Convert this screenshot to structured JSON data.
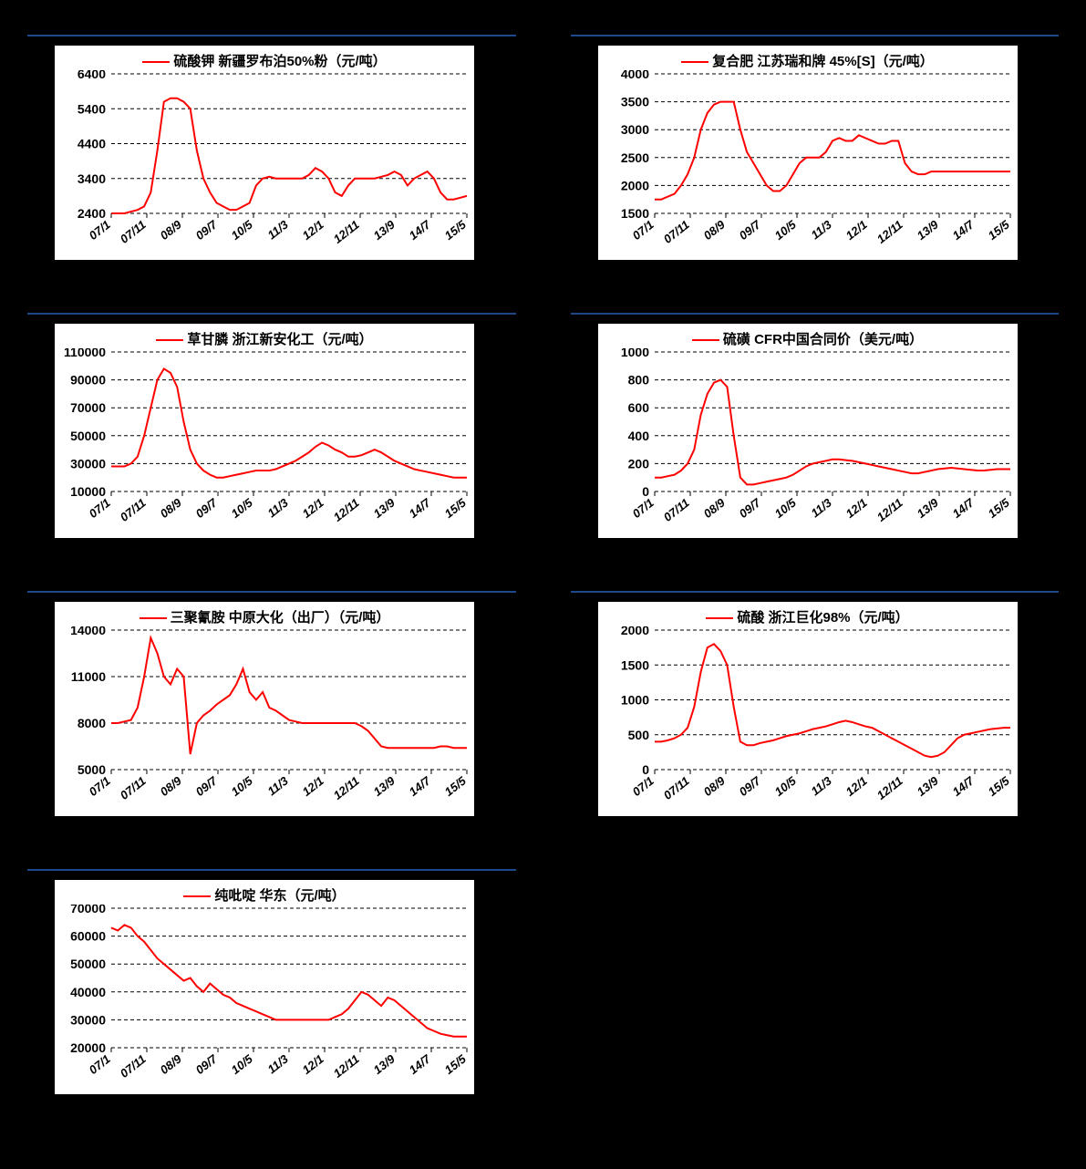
{
  "x_labels": [
    "07/1",
    "07/11",
    "08/9",
    "09/7",
    "10/5",
    "11/3",
    "12/1",
    "12/11",
    "13/9",
    "14/7",
    "15/5"
  ],
  "charts": [
    {
      "id": "potassium-sulfate",
      "legend": "硫酸钾 新疆罗布泊50%粉（元/吨）",
      "ylim": [
        2400,
        6400
      ],
      "ytick_step": 1000,
      "yticks": [
        2400,
        3400,
        4400,
        5400,
        6400
      ],
      "line_color": "#ff0000",
      "line_width": 2,
      "grid_color": "#000000",
      "background_color": "#ffffff",
      "data": [
        2400,
        2400,
        2400,
        2450,
        2500,
        2600,
        3000,
        4200,
        5600,
        5700,
        5700,
        5600,
        5400,
        4200,
        3400,
        3000,
        2700,
        2600,
        2500,
        2500,
        2600,
        2700,
        3200,
        3400,
        3450,
        3400,
        3400,
        3400,
        3400,
        3400,
        3500,
        3700,
        3600,
        3400,
        3000,
        2900,
        3200,
        3400,
        3400,
        3400,
        3400,
        3450,
        3500,
        3600,
        3500,
        3200,
        3400,
        3500,
        3600,
        3400,
        3000,
        2800,
        2800,
        2850,
        2900
      ]
    },
    {
      "id": "compound-fertilizer",
      "legend": "复合肥 江苏瑞和牌 45%[S]（元/吨）",
      "ylim": [
        1500,
        4000
      ],
      "ytick_step": 500,
      "yticks": [
        1500,
        2000,
        2500,
        3000,
        3500,
        4000
      ],
      "line_color": "#ff0000",
      "line_width": 2,
      "grid_color": "#000000",
      "background_color": "#ffffff",
      "data": [
        1750,
        1750,
        1800,
        1850,
        2000,
        2200,
        2500,
        3000,
        3300,
        3450,
        3500,
        3500,
        3500,
        3000,
        2600,
        2400,
        2200,
        2000,
        1900,
        1900,
        2000,
        2200,
        2400,
        2500,
        2500,
        2500,
        2600,
        2800,
        2850,
        2800,
        2800,
        2900,
        2850,
        2800,
        2750,
        2750,
        2800,
        2800,
        2400,
        2250,
        2200,
        2200,
        2250,
        2250,
        2250,
        2250,
        2250,
        2250,
        2250,
        2250,
        2250,
        2250,
        2250,
        2250,
        2250
      ]
    },
    {
      "id": "glyphosate",
      "legend": "草甘膦 浙江新安化工（元/吨）",
      "ylim": [
        10000,
        110000
      ],
      "ytick_step": 20000,
      "yticks": [
        10000,
        30000,
        50000,
        70000,
        90000,
        110000
      ],
      "line_color": "#ff0000",
      "line_width": 2,
      "grid_color": "#000000",
      "background_color": "#ffffff",
      "data": [
        28000,
        28000,
        28000,
        30000,
        35000,
        50000,
        70000,
        90000,
        98000,
        95000,
        85000,
        60000,
        40000,
        30000,
        25000,
        22000,
        20000,
        20000,
        21000,
        22000,
        23000,
        24000,
        25000,
        25000,
        25000,
        26000,
        28000,
        30000,
        32000,
        35000,
        38000,
        42000,
        45000,
        43000,
        40000,
        38000,
        35000,
        35000,
        36000,
        38000,
        40000,
        38000,
        35000,
        32000,
        30000,
        28000,
        26000,
        25000,
        24000,
        23000,
        22000,
        21000,
        20000,
        20000,
        20000
      ]
    },
    {
      "id": "sulfur",
      "legend": "硫磺 CFR中国合同价（美元/吨）",
      "ylim": [
        0,
        1000
      ],
      "ytick_step": 200,
      "yticks": [
        0,
        200,
        400,
        600,
        800,
        1000
      ],
      "line_color": "#ff0000",
      "line_width": 2,
      "grid_color": "#000000",
      "background_color": "#ffffff",
      "data": [
        100,
        100,
        110,
        120,
        150,
        200,
        300,
        550,
        700,
        780,
        800,
        750,
        400,
        100,
        50,
        50,
        60,
        70,
        80,
        90,
        100,
        120,
        150,
        180,
        200,
        210,
        220,
        230,
        230,
        225,
        220,
        210,
        200,
        190,
        180,
        170,
        160,
        150,
        140,
        130,
        130,
        140,
        150,
        160,
        165,
        170,
        165,
        160,
        155,
        150,
        150,
        155,
        160,
        160,
        160
      ]
    },
    {
      "id": "melamine",
      "legend": "三聚氰胺 中原大化（出厂）（元/吨）",
      "ylim": [
        5000,
        14000
      ],
      "ytick_step": 3000,
      "yticks": [
        5000,
        8000,
        11000,
        14000
      ],
      "line_color": "#ff0000",
      "line_width": 2,
      "grid_color": "#000000",
      "background_color": "#ffffff",
      "data": [
        8000,
        8000,
        8100,
        8200,
        9000,
        11000,
        13500,
        12500,
        11000,
        10500,
        11500,
        11000,
        6000,
        8000,
        8500,
        8800,
        9200,
        9500,
        9800,
        10500,
        11500,
        10000,
        9500,
        10000,
        9000,
        8800,
        8500,
        8200,
        8100,
        8000,
        8000,
        8000,
        8000,
        8000,
        8000,
        8000,
        8000,
        8000,
        7800,
        7500,
        7000,
        6500,
        6400,
        6400,
        6400,
        6400,
        6400,
        6400,
        6400,
        6400,
        6500,
        6500,
        6400,
        6400,
        6400
      ]
    },
    {
      "id": "sulfuric-acid",
      "legend": "硫酸 浙江巨化98%（元/吨）",
      "ylim": [
        0,
        2000
      ],
      "ytick_step": 500,
      "yticks": [
        0,
        500,
        1000,
        1500,
        2000
      ],
      "line_color": "#ff0000",
      "line_width": 2,
      "grid_color": "#000000",
      "background_color": "#ffffff",
      "data": [
        400,
        400,
        420,
        450,
        500,
        600,
        900,
        1400,
        1750,
        1800,
        1700,
        1500,
        900,
        400,
        350,
        350,
        380,
        400,
        420,
        450,
        480,
        500,
        520,
        550,
        580,
        600,
        620,
        650,
        680,
        700,
        680,
        650,
        620,
        600,
        550,
        500,
        450,
        400,
        350,
        300,
        250,
        200,
        180,
        200,
        250,
        350,
        450,
        500,
        520,
        540,
        560,
        580,
        590,
        600,
        600
      ]
    },
    {
      "id": "pyridine",
      "legend": "纯吡啶 华东（元/吨）",
      "ylim": [
        20000,
        70000
      ],
      "ytick_step": 10000,
      "yticks": [
        20000,
        30000,
        40000,
        50000,
        60000,
        70000
      ],
      "line_color": "#ff0000",
      "line_width": 2,
      "grid_color": "#000000",
      "background_color": "#ffffff",
      "data": [
        63000,
        62000,
        64000,
        63000,
        60000,
        58000,
        55000,
        52000,
        50000,
        48000,
        46000,
        44000,
        45000,
        42000,
        40000,
        43000,
        41000,
        39000,
        38000,
        36000,
        35000,
        34000,
        33000,
        32000,
        31000,
        30000,
        30000,
        30000,
        30000,
        30000,
        30000,
        30000,
        30000,
        30000,
        31000,
        32000,
        34000,
        37000,
        40000,
        39000,
        37000,
        35000,
        38000,
        37000,
        35000,
        33000,
        31000,
        29000,
        27000,
        26000,
        25000,
        24500,
        24000,
        24000,
        24000
      ]
    }
  ]
}
